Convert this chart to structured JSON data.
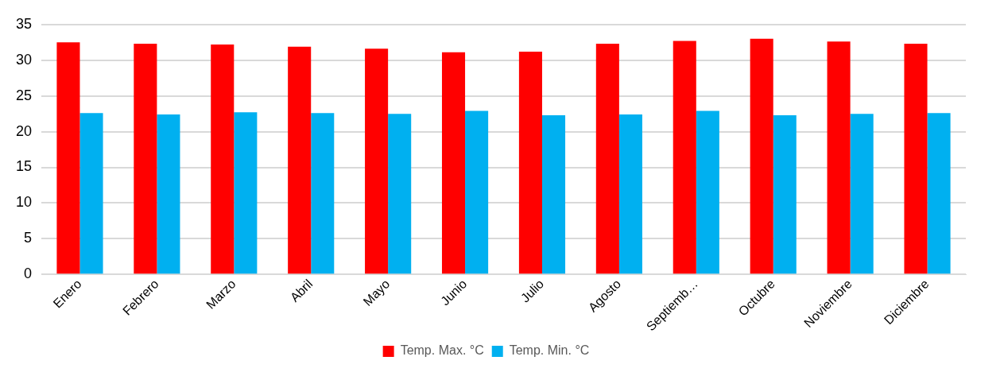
{
  "chart_data": {
    "type": "bar",
    "categories": [
      "Enero",
      "Febrero",
      "Marzo",
      "Abril",
      "Mayo",
      "Junio",
      "Julio",
      "Agosto",
      "Septiemb…",
      "Octubre",
      "Noviembre",
      "Diciembre"
    ],
    "series": [
      {
        "name": "Temp. Max. °C",
        "color": "#ff0000",
        "values": [
          32.5,
          32.3,
          32.2,
          31.9,
          31.6,
          31.1,
          31.2,
          32.3,
          32.7,
          33.0,
          32.6,
          32.3
        ]
      },
      {
        "name": "Temp. Min. °C",
        "color": "#00b0f0",
        "values": [
          22.6,
          22.4,
          22.7,
          22.6,
          22.5,
          22.9,
          22.3,
          22.4,
          22.9,
          22.3,
          22.5,
          22.6
        ]
      }
    ],
    "ylim": [
      0,
      35
    ],
    "yticks": [
      0,
      5,
      10,
      15,
      20,
      25,
      30,
      35
    ],
    "grid": "y",
    "legend": "bottom"
  }
}
